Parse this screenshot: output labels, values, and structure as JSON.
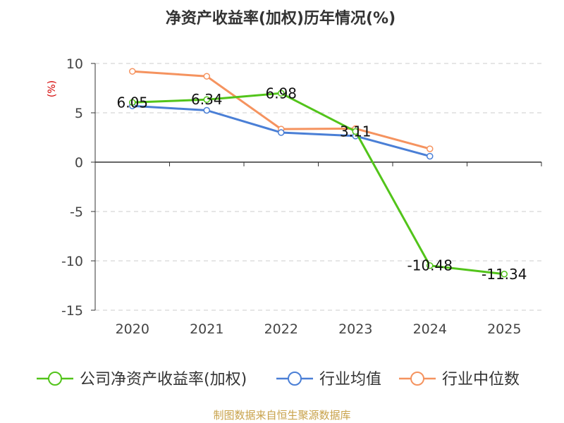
{
  "chart_data": {
    "type": "line",
    "title": "净资产收益率(加权)历年情况(%)",
    "ylabel": "(%)",
    "xlabel": "",
    "categories": [
      "2020",
      "2021",
      "2022",
      "2023",
      "2024",
      "2025"
    ],
    "ylim": [
      -15,
      10
    ],
    "yticks": [
      -15,
      -10,
      -5,
      0,
      5,
      10
    ],
    "grid": true,
    "legend_position": "bottom",
    "series": [
      {
        "name": "公司净资产收益率(加权)",
        "color": "#52c41a",
        "values": [
          6.05,
          6.34,
          6.98,
          3.11,
          -10.48,
          -11.34
        ],
        "labels": [
          "6.05",
          "6.34",
          "6.98",
          "3.11",
          "-10.48",
          "-11.34"
        ]
      },
      {
        "name": "行业均值",
        "color": "#4a7fd6",
        "values": [
          5.7,
          5.25,
          3.0,
          2.65,
          0.6,
          null
        ]
      },
      {
        "name": "行业中位数",
        "color": "#f5935f",
        "values": [
          9.2,
          8.7,
          3.35,
          3.4,
          1.35,
          null
        ]
      }
    ],
    "source": "制图数据来自恒生聚源数据库"
  }
}
